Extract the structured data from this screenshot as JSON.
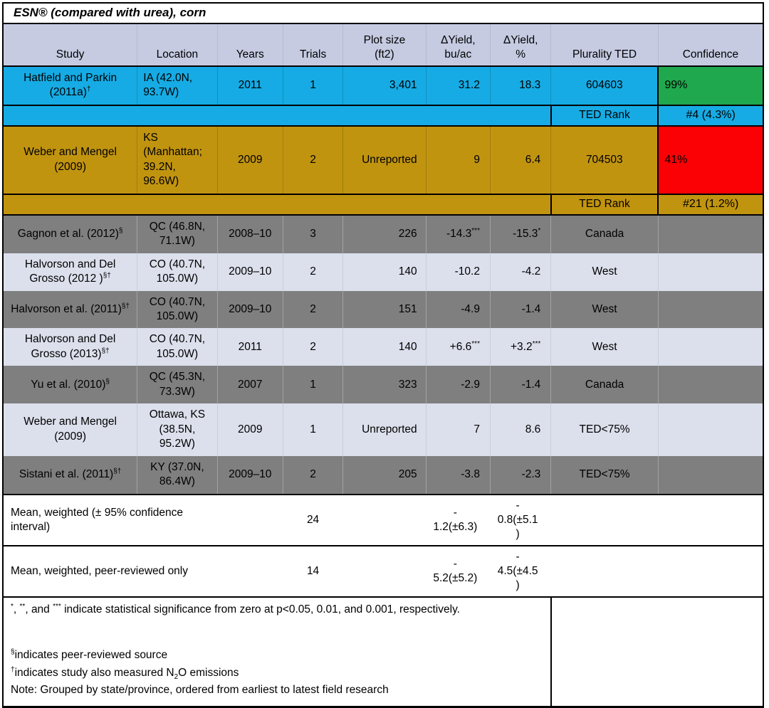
{
  "title": "ESN® (compared with urea), corn",
  "colors": {
    "header": "#C6CBE2",
    "cyan": "#16ABE4",
    "gold": "#C19410",
    "dark": "#7F7F7F",
    "light": "#DCE0EC",
    "green": "#1FA84D",
    "red": "#FB0005"
  },
  "table": {
    "columns": [
      {
        "key": "study",
        "label": "Study"
      },
      {
        "key": "location",
        "label": "Location"
      },
      {
        "key": "years",
        "label": "Years"
      },
      {
        "key": "trials",
        "label": "Trials"
      },
      {
        "key": "plot",
        "label": "Plot size\n(ft2)"
      },
      {
        "key": "bu",
        "label": "ΔYield,\nbu/ac"
      },
      {
        "key": "pct",
        "label": "ΔYield,\n%"
      },
      {
        "key": "ted",
        "label": "Plurality TED"
      },
      {
        "key": "confidence",
        "label": "Confidence"
      }
    ],
    "rows": [
      {
        "type": "data",
        "theme": "cyan",
        "study": {
          "text": "Hatfield and Parkin (2011a)",
          "sup": "†"
        },
        "location": "IA (42.0N, 93.7W)",
        "years": "2011",
        "trials": "1",
        "plot": "3,401",
        "bu": "31.2",
        "pct": "18.3",
        "ted": "604603",
        "confidence": {
          "text": "99%",
          "color": "green"
        }
      },
      {
        "type": "rank",
        "theme": "cyan",
        "label": "TED Rank",
        "value": "#4 (4.3%)"
      },
      {
        "type": "data",
        "theme": "gold",
        "study": "Weber and Mengel (2009)",
        "location": "KS (Manhattan; 39.2N, 96.6W)",
        "years": "2009",
        "trials": "2",
        "plot": "Unreported",
        "bu": "9",
        "pct": "6.4",
        "ted": "704503",
        "confidence": {
          "text": "41%",
          "color": "red"
        }
      },
      {
        "type": "rank",
        "theme": "gold",
        "label": "TED Rank",
        "value": "#21 (1.2%)"
      },
      {
        "type": "data",
        "theme": "dark",
        "study": {
          "text": "Gagnon et al. (2012)",
          "sup": "§"
        },
        "location": "QC (46.8N, 71.1W)",
        "years": "2008–10",
        "trials": "3",
        "plot": "226",
        "bu": {
          "text": "-14.3",
          "sup": "***"
        },
        "pct": {
          "text": "-15.3",
          "sup": "*"
        },
        "ted": "Canada",
        "confidence": null
      },
      {
        "type": "data",
        "theme": "light",
        "study": {
          "text": "Halvorson and Del Grosso (2012 )",
          "sup": "§†"
        },
        "location": "CO (40.7N, 105.0W)",
        "years": "2009–10",
        "trials": "2",
        "plot": "140",
        "bu": "-10.2",
        "pct": "-4.2",
        "ted": "West",
        "confidence": null
      },
      {
        "type": "data",
        "theme": "dark",
        "study": {
          "text": "Halvorson et al. (2011)",
          "sup": "§†"
        },
        "location": "CO (40.7N, 105.0W)",
        "years": "2009–10",
        "trials": "2",
        "plot": "151",
        "bu": "-4.9",
        "pct": "-1.4",
        "ted": "West",
        "confidence": null
      },
      {
        "type": "data",
        "theme": "light",
        "study": {
          "text": "Halvorson and Del Grosso (2013)",
          "sup": "§†"
        },
        "location": "CO (40.7N, 105.0W)",
        "years": "2011",
        "trials": "2",
        "plot": "140",
        "bu": {
          "text": "+6.6",
          "sup": "***"
        },
        "pct": {
          "text": "+3.2",
          "sup": "***"
        },
        "ted": "West",
        "confidence": null
      },
      {
        "type": "data",
        "theme": "dark",
        "study": {
          "text": "Yu et al. (2010)",
          "sup": "§"
        },
        "location": "QC (45.3N, 73.3W)",
        "years": "2007",
        "trials": "1",
        "plot": "323",
        "bu": "-2.9",
        "pct": "-1.4",
        "ted": "Canada",
        "confidence": null
      },
      {
        "type": "data",
        "theme": "light",
        "study": "Weber and Mengel (2009)",
        "location": "Ottawa, KS (38.5N, 95.2W)",
        "years": "2009",
        "trials": "1",
        "plot": "Unreported",
        "bu": "7",
        "pct": "8.6",
        "ted": "TED<75%",
        "confidence": null
      },
      {
        "type": "data",
        "theme": "dark",
        "study": {
          "text": "Sistani et al. (2011)",
          "sup": "§†"
        },
        "location": "KY (37.0N, 86.4W)",
        "years": "2009–10",
        "trials": "2",
        "plot": "205",
        "bu": "-3.8",
        "pct": "-2.3",
        "ted": "TED<75%",
        "confidence": null
      },
      {
        "type": "mean",
        "label": "Mean, weighted (± 95% confidence interval)",
        "trials": "24",
        "bu": "-\n1.2(±6.3)",
        "pct": "-\n0.8(±5.1)"
      },
      {
        "type": "mean",
        "label": "Mean, weighted, peer-reviewed only",
        "trials": "14",
        "bu": "-\n5.2(±5.2)",
        "pct": "-\n4.5(±4.5)"
      }
    ]
  },
  "footnotes": {
    "lines": [
      {
        "segments": [
          {
            "s": "*"
          },
          {
            "t": ", "
          },
          {
            "s": "**"
          },
          {
            "t": ", and "
          },
          {
            "s": "***"
          },
          {
            "t": " indicate statistical significance from zero at p<0.05, 0.01, and 0.001, respectively."
          }
        ]
      },
      {
        "segments": [
          {
            "s": "§"
          },
          {
            "t": "indicates peer-reviewed source"
          }
        ]
      },
      {
        "segments": [
          {
            "s": "†"
          },
          {
            "t": "indicates study also measured N"
          },
          {
            "sub": "2"
          },
          {
            "t": "O emissions"
          }
        ]
      },
      {
        "segments": [
          {
            "t": "Note: Grouped by state/province, ordered from earliest to latest field research"
          }
        ]
      }
    ]
  }
}
